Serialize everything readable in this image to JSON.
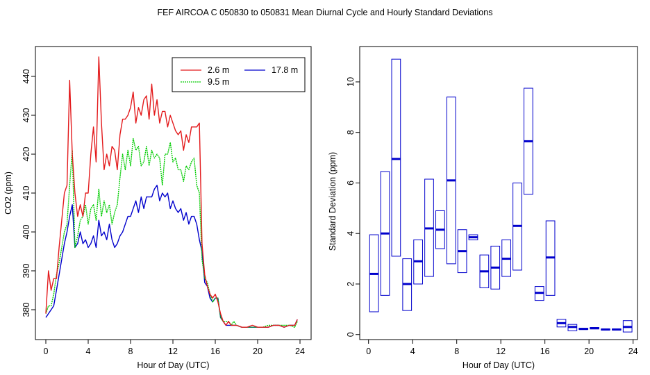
{
  "title": "FEF   AIRCOA C   050830 to 050831   Mean Diurnal Cycle and Hourly Standard Deviations",
  "chart_data": [
    {
      "type": "line",
      "xlabel": "Hour of Day (UTC)",
      "ylabel": "CO2 (ppm)",
      "xlim": [
        0,
        24
      ],
      "ylim": [
        375,
        445
      ],
      "xticks": [
        0,
        4,
        8,
        12,
        16,
        20,
        24
      ],
      "yticks": [
        380,
        390,
        400,
        410,
        420,
        430,
        440
      ],
      "legend_position": "top-right",
      "series": [
        {
          "name": "2.6 m",
          "color": "#e31a1c",
          "x": [
            0,
            0.25,
            0.5,
            0.75,
            1,
            1.25,
            1.5,
            1.75,
            2,
            2.25,
            2.5,
            2.75,
            3,
            3.25,
            3.5,
            3.75,
            4,
            4.25,
            4.5,
            4.75,
            5,
            5.25,
            5.5,
            5.75,
            6,
            6.25,
            6.5,
            6.75,
            7,
            7.25,
            7.5,
            7.75,
            8,
            8.25,
            8.5,
            8.75,
            9,
            9.25,
            9.5,
            9.75,
            10,
            10.25,
            10.5,
            10.75,
            11,
            11.25,
            11.5,
            11.75,
            12,
            12.25,
            12.5,
            12.75,
            13,
            13.25,
            13.5,
            13.75,
            14,
            14.25,
            14.5,
            14.75,
            15,
            15.25,
            15.5,
            15.75,
            16,
            16.25,
            16.5,
            16.75,
            17,
            17.25,
            17.5,
            17.75,
            18,
            18.5,
            19,
            19.5,
            20,
            20.5,
            21,
            21.5,
            22,
            22.5,
            23,
            23.5,
            23.75
          ],
          "values": [
            379,
            390,
            385,
            388,
            388,
            396,
            403,
            410,
            412,
            439,
            420,
            410,
            404,
            407,
            404,
            410,
            410,
            420,
            427,
            418,
            445,
            428,
            416,
            420,
            417,
            422,
            421,
            416,
            425,
            429,
            429,
            430,
            432,
            436,
            428,
            432,
            430,
            434,
            435,
            429,
            438,
            430,
            434,
            428,
            431,
            431,
            427,
            430,
            428,
            426,
            425,
            426,
            421,
            425,
            423,
            427,
            427,
            427,
            428,
            397,
            389,
            386,
            384,
            383,
            384,
            382,
            379,
            377,
            376,
            377,
            376,
            376,
            376,
            375.5,
            375.5,
            376,
            375.5,
            375.5,
            375.5,
            376,
            376,
            375.5,
            376,
            376,
            377.5
          ]
        },
        {
          "name": "9.5 m",
          "color": "#00cc00",
          "x": [
            0,
            0.25,
            0.5,
            0.75,
            1,
            1.25,
            1.5,
            1.75,
            2,
            2.25,
            2.5,
            2.75,
            3,
            3.25,
            3.5,
            3.75,
            4,
            4.25,
            4.5,
            4.75,
            5,
            5.25,
            5.5,
            5.75,
            6,
            6.25,
            6.5,
            6.75,
            7,
            7.25,
            7.5,
            7.75,
            8,
            8.25,
            8.5,
            8.75,
            9,
            9.25,
            9.5,
            9.75,
            10,
            10.25,
            10.5,
            10.75,
            11,
            11.25,
            11.5,
            11.75,
            12,
            12.25,
            12.5,
            12.75,
            13,
            13.25,
            13.5,
            13.75,
            14,
            14.25,
            14.5,
            14.75,
            15,
            15.25,
            15.5,
            15.75,
            16,
            16.25,
            16.5,
            16.75,
            17,
            17.25,
            17.5,
            17.75,
            18,
            18.5,
            19,
            19.5,
            20,
            20.5,
            21,
            21.5,
            22,
            22.5,
            23,
            23.5,
            23.75
          ],
          "values": [
            379,
            381,
            381,
            384,
            389,
            392,
            396,
            400,
            402,
            412,
            421,
            396,
            399,
            403,
            404,
            407,
            402,
            406,
            407,
            403,
            411,
            404,
            408,
            405,
            407,
            402,
            405,
            407,
            414,
            420,
            416,
            421,
            417,
            424,
            421,
            422,
            417,
            418,
            422,
            417,
            421,
            419,
            420,
            419,
            412,
            420,
            420,
            423,
            418,
            419,
            416,
            416,
            413,
            417,
            416,
            418,
            419,
            412,
            410,
            393,
            388,
            387,
            384,
            382,
            383,
            383,
            378,
            377,
            377,
            377,
            376,
            377,
            376,
            375.5,
            375.5,
            375.5,
            375.5,
            375.5,
            376,
            376,
            376,
            376,
            376,
            375.5,
            377
          ]
        },
        {
          "name": "17.8 m",
          "color": "#0000cc",
          "x": [
            0,
            0.25,
            0.5,
            0.75,
            1,
            1.25,
            1.5,
            1.75,
            2,
            2.25,
            2.5,
            2.75,
            3,
            3.25,
            3.5,
            3.75,
            4,
            4.25,
            4.5,
            4.75,
            5,
            5.25,
            5.5,
            5.75,
            6,
            6.25,
            6.5,
            6.75,
            7,
            7.25,
            7.5,
            7.75,
            8,
            8.25,
            8.5,
            8.75,
            9,
            9.25,
            9.5,
            9.75,
            10,
            10.25,
            10.5,
            10.75,
            11,
            11.25,
            11.5,
            11.75,
            12,
            12.25,
            12.5,
            12.75,
            13,
            13.25,
            13.5,
            13.75,
            14,
            14.25,
            14.5,
            14.75,
            15,
            15.25,
            15.5,
            15.75,
            16,
            16.25,
            16.5,
            16.75,
            17,
            17.25,
            17.5,
            17.75,
            18,
            18.5,
            19,
            19.5,
            20,
            20.5,
            21,
            21.5,
            22,
            22.5,
            23,
            23.5,
            23.75
          ],
          "values": [
            378,
            379,
            380,
            381,
            385,
            389,
            393,
            397,
            400,
            404,
            407,
            396,
            397,
            400,
            397,
            398,
            396,
            397,
            399,
            396,
            403,
            399,
            400,
            398,
            402,
            398,
            396,
            397,
            399,
            400,
            402,
            404,
            404,
            406,
            408,
            405,
            409,
            406,
            409,
            409,
            409,
            411,
            412,
            408,
            410,
            409,
            410,
            406,
            408,
            406,
            405,
            406,
            403,
            405,
            402,
            404,
            404,
            402,
            398,
            395,
            387,
            386,
            383,
            382,
            383,
            383,
            378,
            377,
            376,
            376,
            376,
            376,
            376,
            375.5,
            375.5,
            375.5,
            375.5,
            375.5,
            375.5,
            376,
            376,
            375.5,
            376,
            376,
            377.5
          ]
        }
      ]
    },
    {
      "type": "box",
      "xlabel": "Hour of Day (UTC)",
      "ylabel": "Standard Deviation (ppm)",
      "xlim": [
        -0.8,
        24.4
      ],
      "ylim": [
        -0.2,
        11.4
      ],
      "xticks": [
        0,
        4,
        8,
        12,
        16,
        20,
        24
      ],
      "yticks": [
        0,
        2,
        4,
        6,
        8,
        10
      ],
      "color": "#0000cc",
      "boxes": [
        {
          "hour": 0.5,
          "low": 0.9,
          "mid": 2.4,
          "high": 3.95
        },
        {
          "hour": 1.5,
          "low": 1.55,
          "mid": 4.0,
          "high": 6.45
        },
        {
          "hour": 2.5,
          "low": 3.1,
          "mid": 6.95,
          "high": 10.9
        },
        {
          "hour": 3.5,
          "low": 0.95,
          "mid": 2.0,
          "high": 3.0
        },
        {
          "hour": 4.5,
          "low": 2.0,
          "mid": 2.9,
          "high": 3.75
        },
        {
          "hour": 5.5,
          "low": 2.3,
          "mid": 4.2,
          "high": 6.15
        },
        {
          "hour": 6.5,
          "low": 3.4,
          "mid": 4.15,
          "high": 4.9
        },
        {
          "hour": 7.5,
          "low": 2.8,
          "mid": 6.1,
          "high": 9.4
        },
        {
          "hour": 8.5,
          "low": 2.45,
          "mid": 3.3,
          "high": 4.15
        },
        {
          "hour": 9.5,
          "low": 3.75,
          "mid": 3.85,
          "high": 3.95
        },
        {
          "hour": 10.5,
          "low": 1.85,
          "mid": 2.5,
          "high": 3.15
        },
        {
          "hour": 11.5,
          "low": 1.8,
          "mid": 2.65,
          "high": 3.5
        },
        {
          "hour": 12.5,
          "low": 2.3,
          "mid": 3.0,
          "high": 3.75
        },
        {
          "hour": 13.5,
          "low": 2.55,
          "mid": 4.3,
          "high": 6.0
        },
        {
          "hour": 14.5,
          "low": 5.55,
          "mid": 7.65,
          "high": 9.75
        },
        {
          "hour": 15.5,
          "low": 1.35,
          "mid": 1.65,
          "high": 1.9
        },
        {
          "hour": 16.5,
          "low": 1.55,
          "mid": 3.05,
          "high": 4.5
        },
        {
          "hour": 17.5,
          "low": 0.3,
          "mid": 0.45,
          "high": 0.6
        },
        {
          "hour": 18.5,
          "low": 0.15,
          "mid": 0.3,
          "high": 0.4
        },
        {
          "hour": 19.5,
          "low": 0.2,
          "mid": 0.22,
          "high": 0.25
        },
        {
          "hour": 20.5,
          "low": 0.22,
          "mid": 0.25,
          "high": 0.28
        },
        {
          "hour": 21.5,
          "low": 0.18,
          "mid": 0.2,
          "high": 0.22
        },
        {
          "hour": 22.5,
          "low": 0.18,
          "mid": 0.2,
          "high": 0.22
        },
        {
          "hour": 23.5,
          "low": 0.1,
          "mid": 0.3,
          "high": 0.55
        }
      ]
    }
  ]
}
